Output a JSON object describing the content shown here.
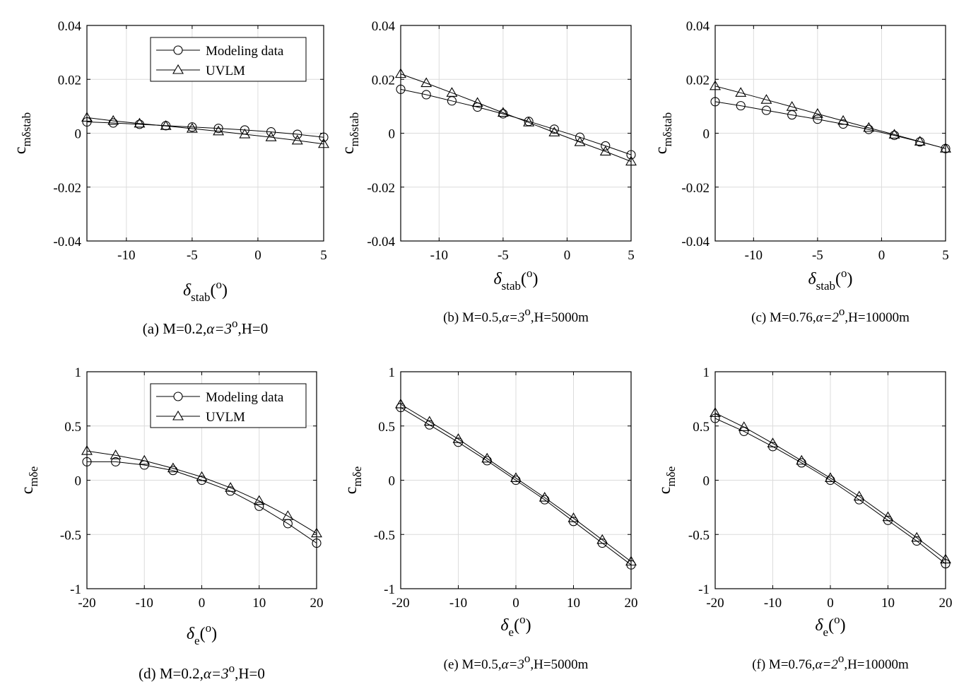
{
  "legend": {
    "series_names": [
      "Modeling data",
      "UVLM"
    ]
  },
  "chart_data": [
    {
      "type": "line",
      "panel": "a",
      "caption": "(a) M=0.2,",
      "caption_alpha": "α=3",
      "caption_tail": ",H=0",
      "ylabel_main": "c",
      "ylabel_sub": "mδstab",
      "xlabel_main": "δ",
      "xlabel_sub": "stab",
      "xlabel_tail": "( )",
      "xlim": [
        -13,
        5
      ],
      "ylim": [
        -0.04,
        0.04
      ],
      "xticks": [
        -10,
        -5,
        0,
        5
      ],
      "xtick_labels": [
        "-10",
        "-5",
        "0",
        "5"
      ],
      "yticks": [
        -0.04,
        -0.02,
        0,
        0.02,
        0.04
      ],
      "ytick_labels": [
        "-0.04",
        "-0.02",
        "0",
        "0.02",
        "0.04"
      ],
      "legend": true,
      "x": [
        -13,
        -11,
        -9,
        -7,
        -5,
        -3,
        -1,
        1,
        3,
        5
      ],
      "series": [
        {
          "name": "Modeling data",
          "marker": "circle",
          "values": [
            0.0042,
            0.0038,
            0.0033,
            0.0028,
            0.0023,
            0.0018,
            0.0012,
            0.0005,
            -0.0004,
            -0.0015
          ]
        },
        {
          "name": "UVLM",
          "marker": "triangle",
          "values": [
            0.0058,
            0.0046,
            0.0036,
            0.0027,
            0.0017,
            0.0007,
            -0.0004,
            -0.0015,
            -0.0027,
            -0.004
          ]
        }
      ]
    },
    {
      "type": "line",
      "panel": "b",
      "caption": "(b) M=0.5,",
      "caption_alpha": "α=3",
      "caption_tail": ",H=5000m",
      "ylabel_main": "c",
      "ylabel_sub": "mδstab",
      "xlabel_main": "δ",
      "xlabel_sub": "stab",
      "xlabel_tail": "( )",
      "xlim": [
        -13,
        5
      ],
      "ylim": [
        -0.04,
        0.04
      ],
      "xticks": [
        -10,
        -5,
        0,
        5
      ],
      "xtick_labels": [
        "-10",
        "-5",
        "0",
        "5"
      ],
      "yticks": [
        -0.04,
        -0.02,
        0,
        0.02,
        0.04
      ],
      "ytick_labels": [
        "-0.04",
        "-0.02",
        "0",
        "0.02",
        "0.04"
      ],
      "legend": false,
      "x": [
        -13,
        -11,
        -9,
        -7,
        -5,
        -3,
        -1,
        1,
        3,
        5
      ],
      "series": [
        {
          "name": "Modeling data",
          "marker": "circle",
          "values": [
            0.0163,
            0.0143,
            0.012,
            0.0097,
            0.0072,
            0.0044,
            0.0015,
            -0.0015,
            -0.0047,
            -0.008
          ]
        },
        {
          "name": "UVLM",
          "marker": "triangle",
          "values": [
            0.022,
            0.0186,
            0.015,
            0.0113,
            0.0076,
            0.004,
            0.0003,
            -0.0033,
            -0.0068,
            -0.0105
          ]
        }
      ]
    },
    {
      "type": "line",
      "panel": "c",
      "caption": "(c) M=0.76,",
      "caption_alpha": "α=2",
      "caption_tail": ",H=10000m",
      "ylabel_main": "c",
      "ylabel_sub": "mδstab",
      "xlabel_main": "δ",
      "xlabel_sub": "stab",
      "xlabel_tail": "( )",
      "xlim": [
        -13,
        5
      ],
      "ylim": [
        -0.04,
        0.04
      ],
      "xticks": [
        -10,
        -5,
        0,
        5
      ],
      "xtick_labels": [
        "-10",
        "-5",
        "0",
        "5"
      ],
      "yticks": [
        -0.04,
        -0.02,
        0,
        0.02,
        0.04
      ],
      "ytick_labels": [
        "-0.04",
        "-0.02",
        "0",
        "0.02",
        "0.04"
      ],
      "legend": false,
      "x": [
        -13,
        -11,
        -9,
        -7,
        -5,
        -3,
        -1,
        1,
        3,
        5
      ],
      "series": [
        {
          "name": "Modeling data",
          "marker": "circle",
          "values": [
            0.0117,
            0.0102,
            0.0085,
            0.0068,
            0.0052,
            0.0034,
            0.0014,
            -0.0008,
            -0.0032,
            -0.0057
          ]
        },
        {
          "name": "UVLM",
          "marker": "triangle",
          "values": [
            0.0175,
            0.015,
            0.0124,
            0.0098,
            0.0072,
            0.0046,
            0.002,
            -0.0005,
            -0.0031,
            -0.0057
          ]
        }
      ]
    },
    {
      "type": "line",
      "panel": "d",
      "caption": "(d) M=0.2,",
      "caption_alpha": "α=3",
      "caption_tail": ",H=0",
      "ylabel_main": "c",
      "ylabel_sub": "mδe",
      "xlabel_main": "δ",
      "xlabel_sub": "e",
      "xlabel_tail": "( )",
      "xlim": [
        -20,
        20
      ],
      "ylim": [
        -1,
        1
      ],
      "xticks": [
        -20,
        -10,
        0,
        10,
        20
      ],
      "xtick_labels": [
        "-20",
        "-10",
        "0",
        "10",
        "20"
      ],
      "yticks": [
        -1,
        -0.5,
        0,
        0.5,
        1
      ],
      "ytick_labels": [
        "-1",
        "-0.5",
        "0",
        "0.5",
        "1"
      ],
      "legend": true,
      "x": [
        -20,
        -15,
        -10,
        -5,
        0,
        5,
        10,
        15,
        20
      ],
      "series": [
        {
          "name": "Modeling data",
          "marker": "circle",
          "values": [
            0.17,
            0.17,
            0.14,
            0.09,
            0.0,
            -0.1,
            -0.24,
            -0.4,
            -0.58
          ]
        },
        {
          "name": "UVLM",
          "marker": "triangle",
          "values": [
            0.27,
            0.23,
            0.18,
            0.11,
            0.03,
            -0.07,
            -0.19,
            -0.33,
            -0.49
          ]
        }
      ]
    },
    {
      "type": "line",
      "panel": "e",
      "caption": "(e) M=0.5,",
      "caption_alpha": "α=3",
      "caption_tail": ",H=5000m",
      "ylabel_main": "c",
      "ylabel_sub": "mδe",
      "xlabel_main": "δ",
      "xlabel_sub": "e",
      "xlabel_tail": "( )",
      "xlim": [
        -20,
        20
      ],
      "ylim": [
        -1,
        1
      ],
      "xticks": [
        -20,
        -10,
        0,
        10,
        20
      ],
      "xtick_labels": [
        "-20",
        "-10",
        "0",
        "10",
        "20"
      ],
      "yticks": [
        -1,
        -0.5,
        0,
        0.5,
        1
      ],
      "ytick_labels": [
        "-1",
        "-0.5",
        "0",
        "0.5",
        "1"
      ],
      "legend": false,
      "x": [
        -20,
        -15,
        -10,
        -5,
        0,
        5,
        10,
        15,
        20
      ],
      "series": [
        {
          "name": "Modeling data",
          "marker": "circle",
          "values": [
            0.67,
            0.51,
            0.35,
            0.18,
            0.0,
            -0.18,
            -0.38,
            -0.58,
            -0.78
          ]
        },
        {
          "name": "UVLM",
          "marker": "triangle",
          "values": [
            0.7,
            0.54,
            0.38,
            0.2,
            0.02,
            -0.16,
            -0.35,
            -0.55,
            -0.75
          ]
        }
      ]
    },
    {
      "type": "line",
      "panel": "f",
      "caption": "(f) M=0.76,",
      "caption_alpha": "α=2",
      "caption_tail": ",H=10000m",
      "ylabel_main": "c",
      "ylabel_sub": "mδe",
      "xlabel_main": "δ",
      "xlabel_sub": "e",
      "xlabel_tail": "( )",
      "xlim": [
        -20,
        20
      ],
      "ylim": [
        -1,
        1
      ],
      "xticks": [
        -20,
        -10,
        0,
        10,
        20
      ],
      "xtick_labels": [
        "-20",
        "-10",
        "0",
        "10",
        "20"
      ],
      "yticks": [
        -1,
        -0.5,
        0,
        0.5,
        1
      ],
      "ytick_labels": [
        "-1",
        "-0.5",
        "0",
        "0.5",
        "1"
      ],
      "legend": false,
      "x": [
        -20,
        -15,
        -10,
        -5,
        0,
        5,
        10,
        15,
        20
      ],
      "series": [
        {
          "name": "Modeling data",
          "marker": "circle",
          "values": [
            0.57,
            0.45,
            0.31,
            0.16,
            0.0,
            -0.18,
            -0.37,
            -0.56,
            -0.77
          ]
        },
        {
          "name": "UVLM",
          "marker": "triangle",
          "values": [
            0.62,
            0.49,
            0.34,
            0.18,
            0.02,
            -0.15,
            -0.34,
            -0.53,
            -0.73
          ]
        }
      ]
    }
  ],
  "degree_mark": "o"
}
